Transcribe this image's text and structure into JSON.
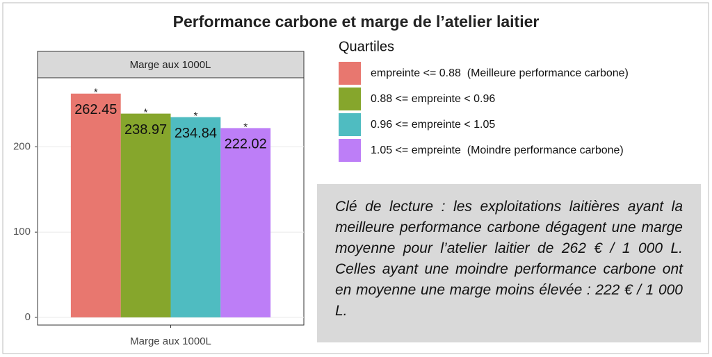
{
  "chart_data": {
    "type": "bar",
    "title": "Performance carbone et marge de l’atelier laitier",
    "facet": "Marge aux 1000L",
    "categories": [
      "Marge aux 1000L"
    ],
    "legend_title": "Quartiles",
    "series": [
      {
        "name": "empreinte <= 0.88  (Meilleure performance carbone)",
        "color": "#e8776f",
        "values": [
          262.45
        ],
        "significance": [
          "*"
        ]
      },
      {
        "name": "0.88 <= empreinte < 0.96",
        "color": "#86a62c",
        "values": [
          238.97
        ],
        "significance": [
          "*"
        ]
      },
      {
        "name": "0.96 <= empreinte < 1.05",
        "color": "#4fbcc1",
        "values": [
          234.84
        ],
        "significance": [
          "*"
        ]
      },
      {
        "name": "1.05 <= empreinte  (Moindre performance carbone)",
        "color": "#bd7ef7",
        "values": [
          222.02
        ],
        "significance": [
          "*"
        ]
      }
    ],
    "ylim": [
      -9,
      281
    ],
    "yticks": [
      0,
      100,
      200
    ],
    "grid": true,
    "note": "Clé de lecture : les exploitations laitières ayant la meilleure performance carbone dégagent une marge moyenne pour l’atelier laitier de 262 € / 1 000 L. Celles ayant une moindre performance carbone ont en moyenne une marge moins élevée : 222 € / 1 000 L."
  }
}
